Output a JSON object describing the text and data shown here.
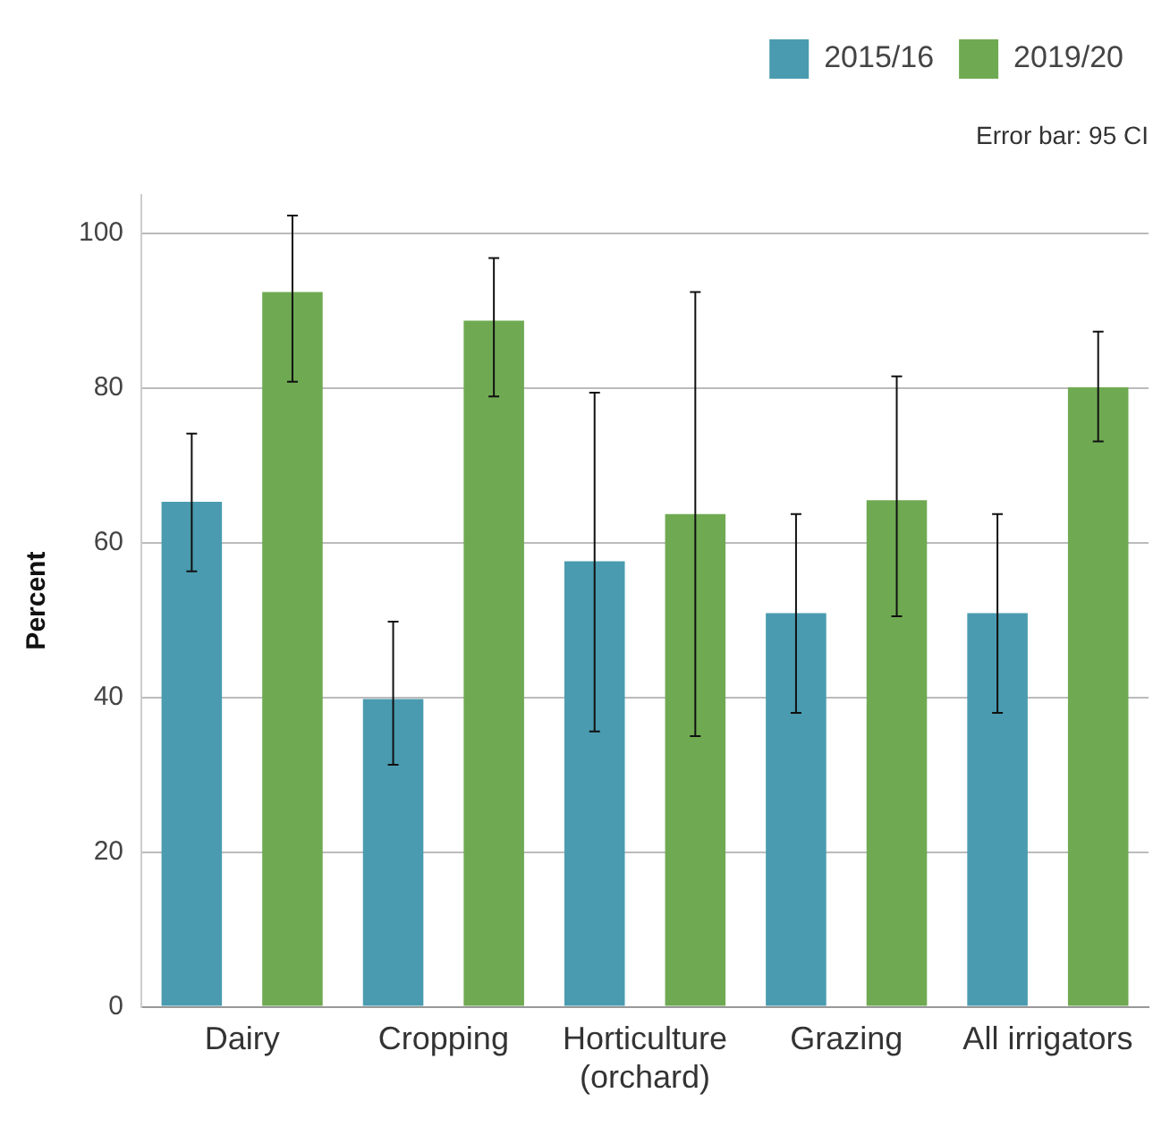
{
  "chart_data": {
    "type": "bar",
    "ylabel": "Percent",
    "annotations": [
      "Error bar: 95 CI"
    ],
    "categories": [
      "Dairy",
      "Cropping",
      "Horticulture (orchard)",
      "Grazing",
      "All irrigators"
    ],
    "series": [
      {
        "name": "2015/16",
        "color": "#4a9bb0",
        "values": [
          65.3,
          39.8,
          57.6,
          50.9,
          50.9
        ],
        "errors": [
          [
            56.3,
            74.1
          ],
          [
            31.3,
            49.8
          ],
          [
            35.6,
            79.4
          ],
          [
            38.0,
            63.7
          ],
          [
            38.0,
            63.7
          ]
        ]
      },
      {
        "name": "2019/20",
        "color": "#6faa52",
        "values": [
          92.4,
          88.7,
          63.7,
          65.5,
          80.1
        ],
        "errors": [
          [
            80.8,
            102.3
          ],
          [
            78.9,
            96.8
          ],
          [
            35.0,
            92.4
          ],
          [
            50.5,
            81.5
          ],
          [
            73.1,
            87.3
          ]
        ]
      }
    ],
    "ylim": [
      0,
      105
    ],
    "yticks": [
      0,
      20,
      40,
      60,
      80,
      100
    ],
    "grid": "y",
    "legend": "top right"
  }
}
